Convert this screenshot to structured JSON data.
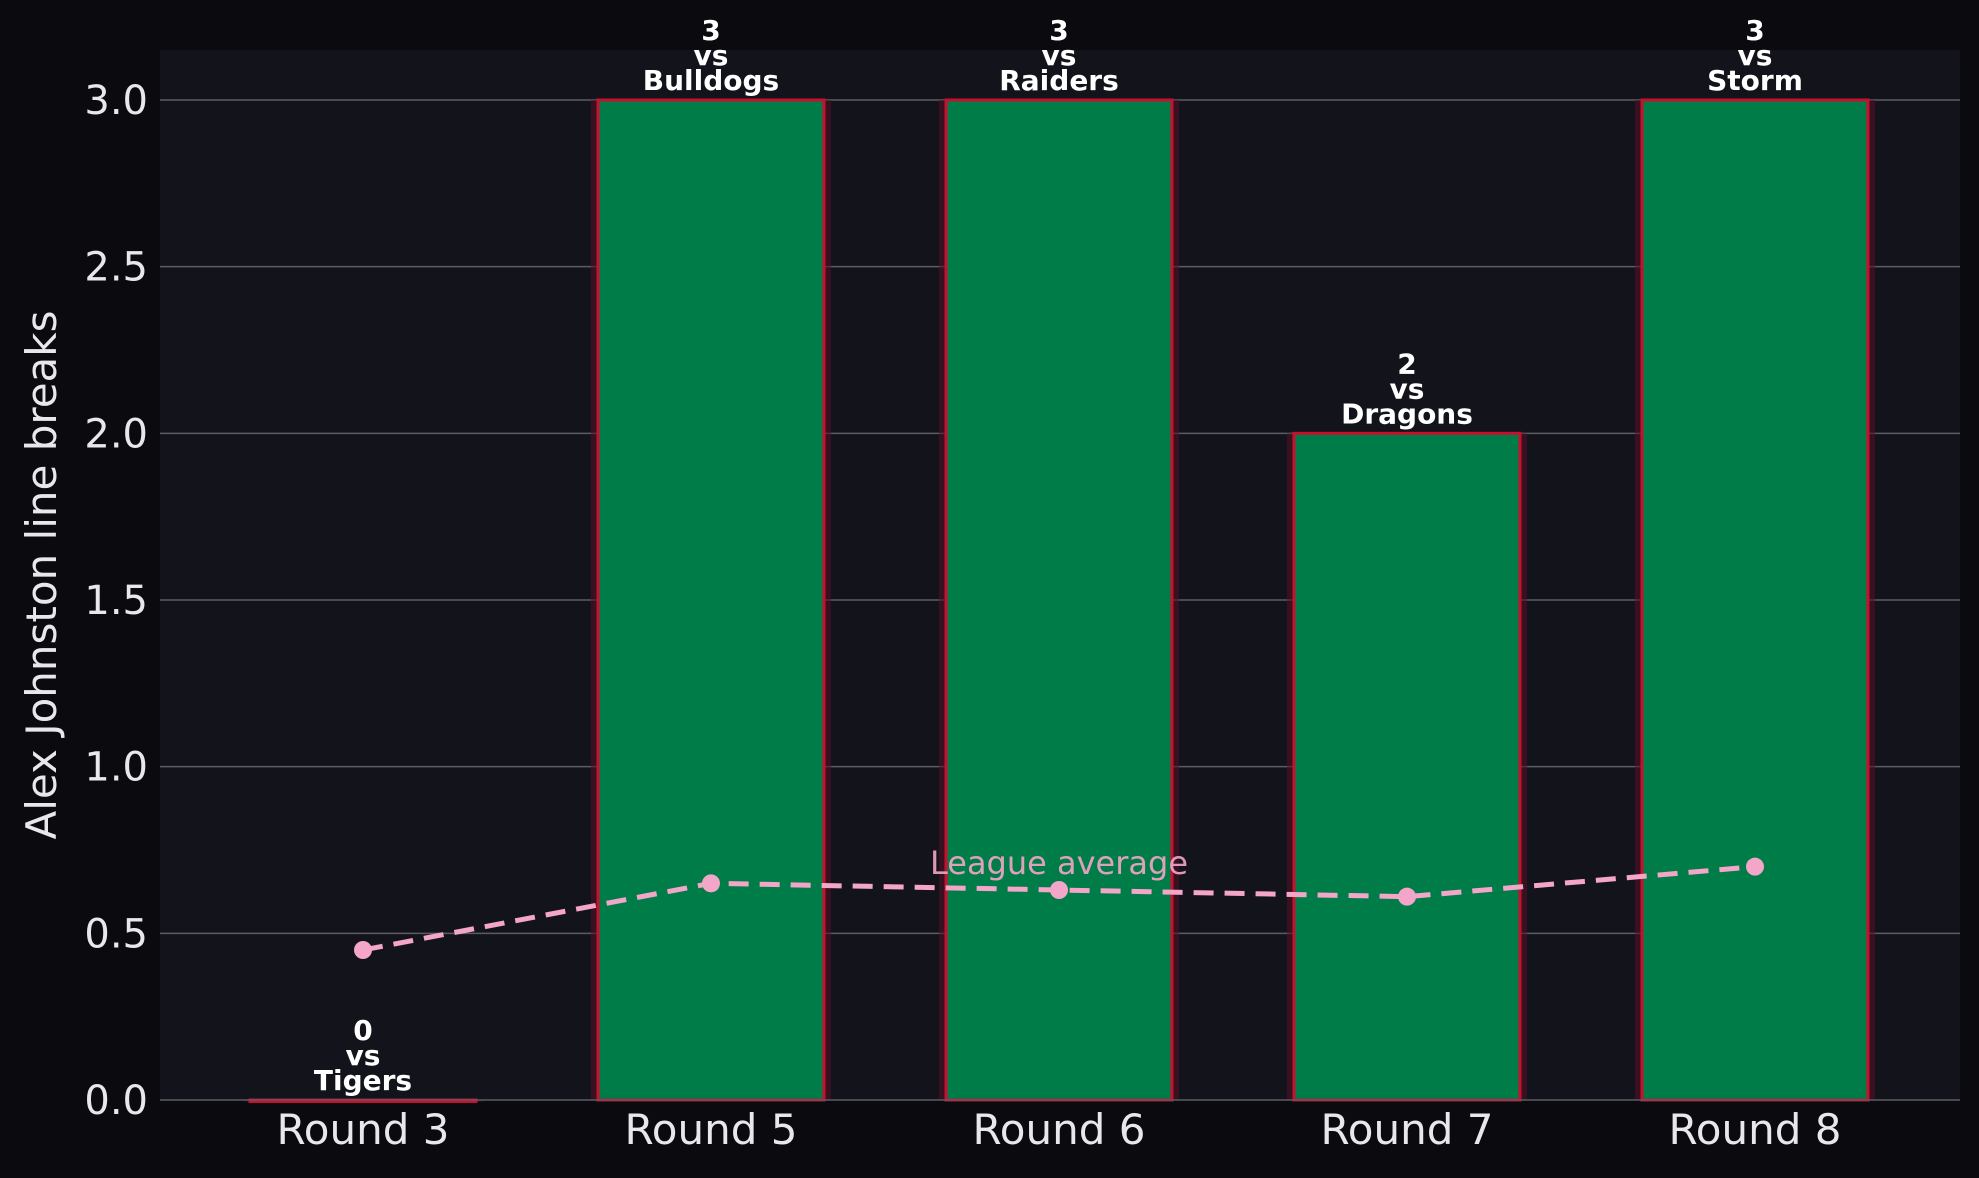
{
  "chart_data": {
    "type": "bar",
    "title": "",
    "xlabel": "",
    "ylabel": "Alex Johnston line breaks",
    "categories": [
      "Round 3",
      "Round 5",
      "Round 6",
      "Round 7",
      "Round 8"
    ],
    "values": [
      0,
      3,
      3,
      2,
      3
    ],
    "bar_labels": [
      [
        "0",
        "vs",
        "Tigers"
      ],
      [
        "3",
        "vs",
        "Bulldogs"
      ],
      [
        "3",
        "vs",
        "Raiders"
      ],
      [
        "2",
        "vs",
        "Dragons"
      ],
      [
        "3",
        "vs",
        "Storm"
      ]
    ],
    "ylim": [
      0,
      3.15
    ],
    "yticks": [
      "0.0",
      "0.5",
      "1.0",
      "1.5",
      "2.0",
      "2.5",
      "3.0"
    ],
    "grid": "horizontal",
    "series": [
      {
        "type": "line",
        "style": "dashed",
        "values": [
          0.45,
          0.65,
          0.63,
          0.61,
          0.7
        ]
      }
    ],
    "annotations": [
      {
        "text": "League average",
        "category_index": 2
      }
    ],
    "colors": {
      "page_background": "#0b0b0f",
      "plot_background": "#13131b",
      "bar_fill": "#007c48",
      "bar_edge": "#c8102e",
      "bar_glow": "#5a0f22",
      "average_line": "#f4a6c8",
      "grid": "#5c5c66",
      "text": "#e8e8ec",
      "label_text": "#ffffff"
    }
  }
}
